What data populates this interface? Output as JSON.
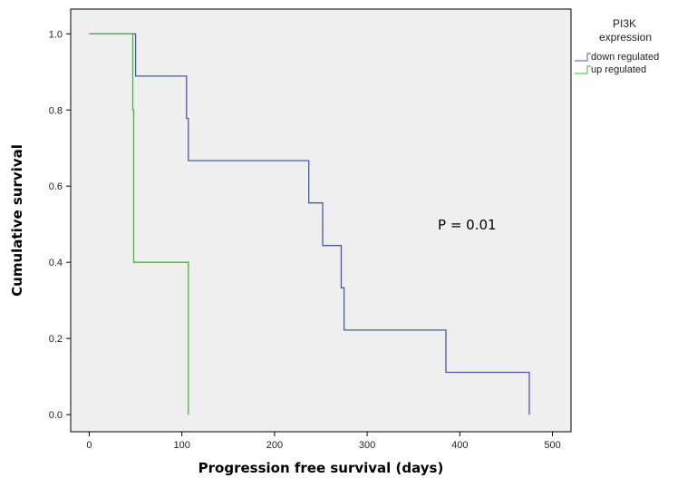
{
  "chart_data": {
    "type": "line",
    "xlabel": "Progression free survival (days)",
    "ylabel": "Cumulative survival",
    "xlim": [
      -20,
      520
    ],
    "ylim": [
      -0.045,
      1.065
    ],
    "xticks": [
      "0",
      "100",
      "200",
      "300",
      "400",
      "500"
    ],
    "xtick_values": [
      0,
      100,
      200,
      300,
      400,
      500
    ],
    "yticks": [
      "0.0",
      "0.2",
      "0.4",
      "0.6",
      "0.8",
      "1.0"
    ],
    "ytick_values": [
      0,
      0.2,
      0.4,
      0.6,
      0.8,
      1.0
    ],
    "legend": {
      "title_line1": "PI3K",
      "title_line2": "expression",
      "placement": "top-right outside plot"
    },
    "annotation": "P = 0.01",
    "grid": false,
    "series": [
      {
        "name": "down regulated",
        "color": "#4a5aaa",
        "steps": [
          [
            0,
            1.0
          ],
          [
            50,
            1.0
          ],
          [
            50,
            0.889
          ],
          [
            105,
            0.889
          ],
          [
            105,
            0.778
          ],
          [
            107,
            0.778
          ],
          [
            107,
            0.667
          ],
          [
            237,
            0.667
          ],
          [
            237,
            0.556
          ],
          [
            252,
            0.556
          ],
          [
            252,
            0.444
          ],
          [
            272,
            0.444
          ],
          [
            272,
            0.333
          ],
          [
            275,
            0.333
          ],
          [
            275,
            0.222
          ],
          [
            385,
            0.222
          ],
          [
            385,
            0.111
          ],
          [
            475,
            0.111
          ],
          [
            475,
            0.0
          ]
        ]
      },
      {
        "name": "up regulated",
        "color": "#3dbb3d",
        "steps": [
          [
            0,
            1.0
          ],
          [
            47,
            1.0
          ],
          [
            47,
            0.8
          ],
          [
            48,
            0.8
          ],
          [
            48,
            0.6
          ],
          [
            48,
            0.4
          ],
          [
            107,
            0.4
          ],
          [
            107,
            0.0
          ]
        ]
      }
    ]
  }
}
